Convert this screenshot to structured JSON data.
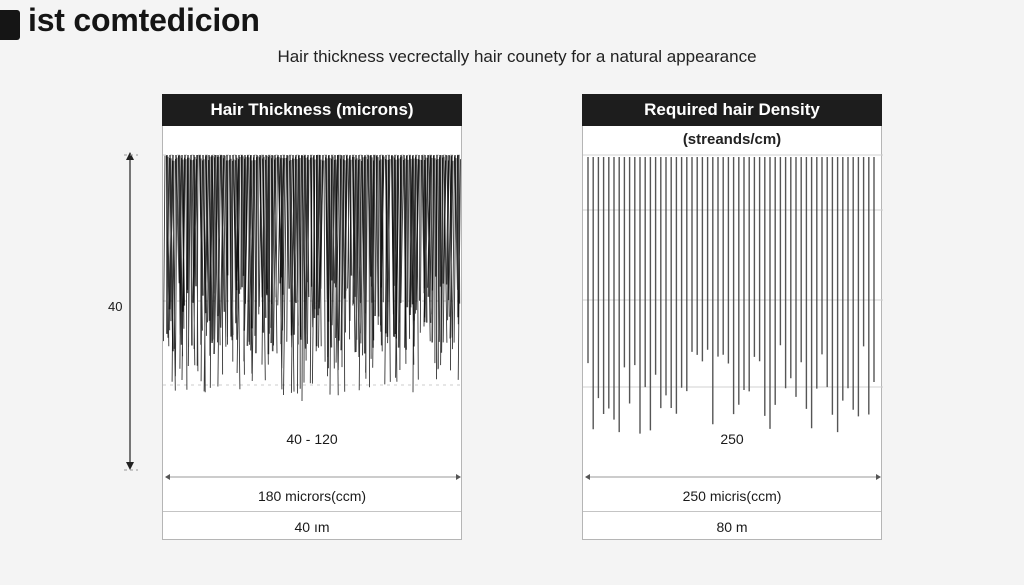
{
  "header": {
    "title": "ist comtedicion",
    "subtitle": "Hair thickness vecrectally hair counety for a natural appearance"
  },
  "y_axis": {
    "label": "40"
  },
  "panels": [
    {
      "header": "Hair Thickness (microns)",
      "subheader": "",
      "center_value": "40 - 120",
      "footer_line1": "180 micrors(ccm)",
      "footer_line2": "40 ım"
    },
    {
      "header": "Required hair Density",
      "subheader": "(streands/cm)",
      "center_value": "250",
      "footer_line1": "250 micris(ccm)",
      "footer_line2": "80 m"
    }
  ],
  "colors": {
    "strand": "#111111",
    "strand_light": "#555555",
    "header_bg": "#1d1d1d"
  }
}
